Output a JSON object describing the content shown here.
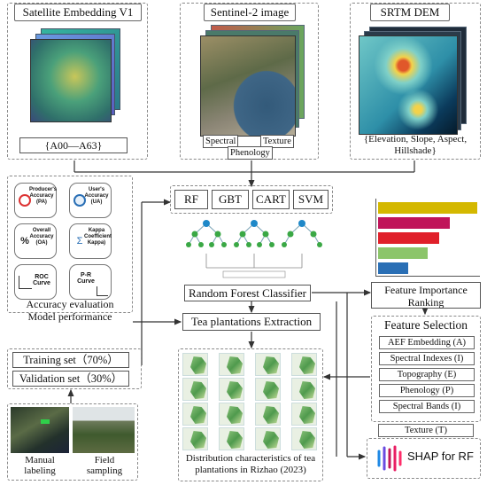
{
  "sources": {
    "satellite": {
      "title": "Satellite Embedding V1",
      "range": "{A00—A63}"
    },
    "sentinel": {
      "title": "Sentinel-2 image",
      "tags": [
        "Spectral",
        "Texture",
        "Phenology"
      ]
    },
    "srtm": {
      "title": "SRTM DEM",
      "caption_line1": "{Elevation, Slope, Aspect,",
      "caption_line2": "Hillshade}"
    }
  },
  "models": [
    "RF",
    "GBT",
    "CART",
    "SVM"
  ],
  "classifier": {
    "label": "Random Forest Classifier"
  },
  "extraction": {
    "label": "Tea plantations Extraction"
  },
  "accuracy": {
    "metrics": [
      {
        "label": "Producer's Accuracy (PA)"
      },
      {
        "label": "User's Accuracy (UA)"
      },
      {
        "label": "Overall Accuracy (OA)"
      },
      {
        "label": "Kappa Coefficient Kappa)"
      },
      {
        "label": "ROC Curve"
      },
      {
        "label": "P-R Curve"
      }
    ],
    "caption_line1": "Accuracy evaluation",
    "caption_line2": "Model performance"
  },
  "samples": {
    "training": "Training set（70%）",
    "validation": "Validation set（30%）",
    "manual": "Manual labeling",
    "field": "Field sampling"
  },
  "importance": {
    "label_line1": "Feature Importance",
    "label_line2": "Ranking",
    "bars": [
      {
        "value": 1.0,
        "color": "#d4b800"
      },
      {
        "value": 0.72,
        "color": "#c0145a"
      },
      {
        "value": 0.62,
        "color": "#e0202a"
      },
      {
        "value": 0.5,
        "color": "#8cc56a"
      },
      {
        "value": 0.3,
        "color": "#2a6fb5"
      }
    ]
  },
  "feature_selection": {
    "title": "Feature Selection",
    "items": [
      "AEF Embedding (A)",
      "Spectral Indexes (I)",
      "Topography (E)",
      "Phenology (P)",
      "Spectral Bands (I)",
      "Texture (T)"
    ]
  },
  "distribution": {
    "caption_line1": "Distribution characteristics of tea",
    "caption_line2": "plantations in Rizhao (2023)"
  },
  "shap": {
    "label": "SHAP for RF"
  }
}
